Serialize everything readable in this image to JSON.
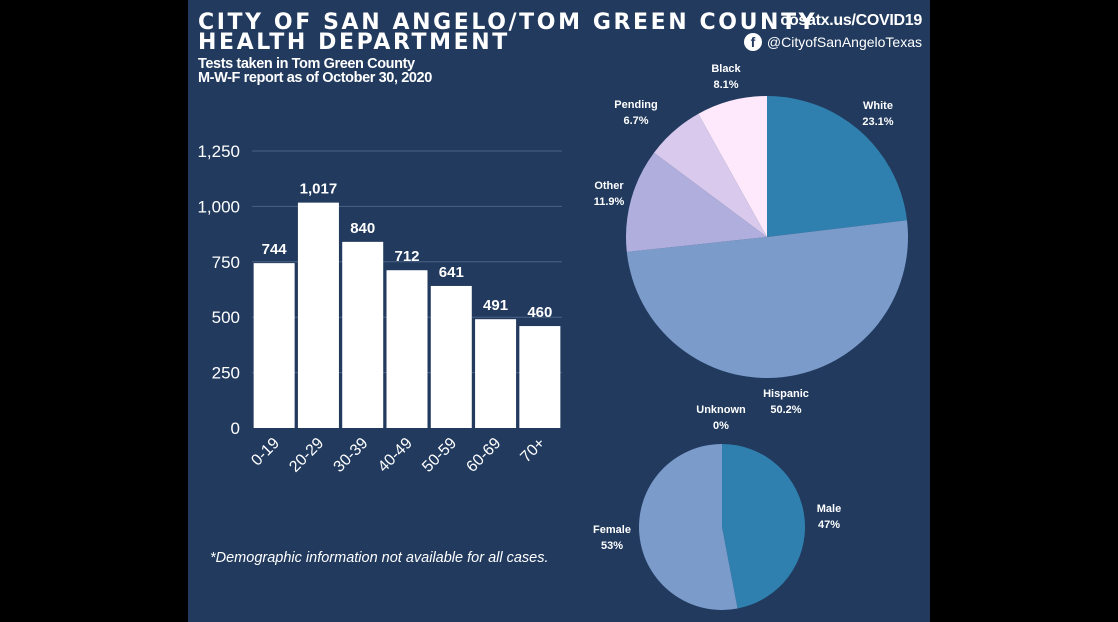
{
  "header": {
    "title_line1": "CITY OF SAN ANGELO/TOM GREEN COUNTY",
    "title_line2": "HEALTH DEPARTMENT",
    "subtitle_line1": "Tests taken in Tom Green County",
    "subtitle_line2": "M-W-F report as of October 30, 2020",
    "url": "cosatx.us/COVID19",
    "facebook_handle": "@CityofSanAngeloTexas",
    "facebook_icon": "facebook-icon"
  },
  "footnote": "*Demographic information not available for all cases.",
  "colors": {
    "background": "#213a5e",
    "bar": "#ffffff",
    "gridline": "#4a6282"
  },
  "chart_data": [
    {
      "type": "bar",
      "categories": [
        "0-19",
        "20-29",
        "30-39",
        "40-49",
        "50-59",
        "60-69",
        "70+"
      ],
      "values": [
        744,
        1017,
        840,
        712,
        641,
        491,
        460
      ],
      "data_labels": [
        "744",
        "1,017",
        "840",
        "712",
        "641",
        "491",
        "460"
      ],
      "yticks": [
        "0",
        "250",
        "500",
        "750",
        "1,000",
        "1,250"
      ],
      "ylim": [
        0,
        1250
      ],
      "grid": true
    },
    {
      "type": "pie",
      "slices": [
        {
          "label": "White",
          "value": 23.1,
          "text": "23.1%",
          "color": "#2f80ae"
        },
        {
          "label": "Hispanic",
          "value": 50.2,
          "text": "50.2%",
          "color": "#7b9bcb"
        },
        {
          "label": "Other",
          "value": 11.9,
          "text": "11.9%",
          "color": "#afaedd"
        },
        {
          "label": "Pending",
          "value": 6.7,
          "text": "6.7%",
          "color": "#d9c9ec"
        },
        {
          "label": "Black",
          "value": 8.1,
          "text": "8.1%",
          "color": "#fde9fb"
        }
      ]
    },
    {
      "type": "pie",
      "slices": [
        {
          "label": "Male",
          "value": 47,
          "text": "47%",
          "color": "#2f80ae"
        },
        {
          "label": "Female",
          "value": 53,
          "text": "53%",
          "color": "#7b9bcb"
        },
        {
          "label": "Unknown",
          "value": 0,
          "text": "0%",
          "color": "#afaedd"
        }
      ]
    }
  ]
}
